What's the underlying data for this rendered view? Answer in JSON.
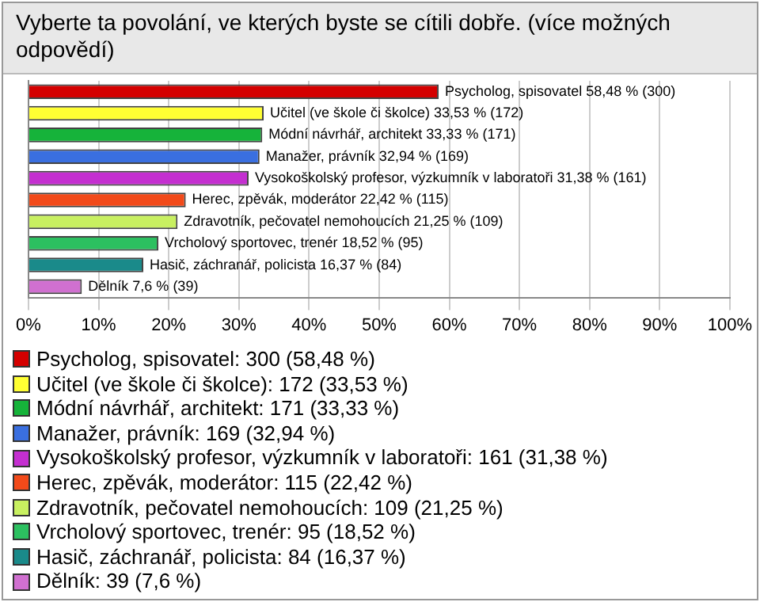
{
  "chart_data": {
    "type": "bar",
    "orientation": "horizontal",
    "title": "Vyberte ta povolání, ve kterých byste se cítili dobře. (více možných odpovědí)",
    "categories": [
      "Psycholog, spisovatel",
      "Učitel (ve škole či školce)",
      "Módní návrhář, architekt",
      "Manažer, právník",
      "Vysokoškolský profesor, výzkumník v laboratoři",
      "Herec, zpěvák, moderátor",
      "Zdravotník, pečovatel nemohoucích",
      "Vrcholový sportovec, trenér",
      "Hasič, záchranář, policista",
      "Dělník"
    ],
    "values": [
      58.48,
      33.53,
      33.33,
      32.94,
      31.38,
      22.42,
      21.25,
      18.52,
      16.37,
      7.6
    ],
    "value_labels": [
      "58,48 % (300)",
      "33,53 % (172)",
      "33,33 % (171)",
      "32,94 % (169)",
      "31,38 % (161)",
      "22,42 % (115)",
      "21,25 % (109)",
      "18,52 % (95)",
      "16,37 % (84)",
      "7,6 % (39)"
    ],
    "colors": [
      "#d40000",
      "#ffff33",
      "#16b33a",
      "#3a6fe0",
      "#c42fd0",
      "#f24a1a",
      "#c8f060",
      "#2cc060",
      "#1a8a8a",
      "#d070d0"
    ],
    "xlim": [
      0,
      100
    ],
    "xticks": [
      {
        "value": 0,
        "label": "0%"
      },
      {
        "value": 10,
        "label": "10%"
      },
      {
        "value": 20,
        "label": "20%"
      },
      {
        "value": 30,
        "label": "30%"
      },
      {
        "value": 40,
        "label": "40%"
      },
      {
        "value": 50,
        "label": "50%"
      },
      {
        "value": 60,
        "label": "60%"
      },
      {
        "value": 70,
        "label": "70%"
      },
      {
        "value": 80,
        "label": "80%"
      },
      {
        "value": 90,
        "label": "90%"
      },
      {
        "value": 100,
        "label": "100%"
      }
    ],
    "grid": "x",
    "annotations": [
      "Psycholog, spisovatel: 300 (58,48 %)",
      "Učitel (ve škole či školce): 172 (33,53 %)",
      "Módní návrhář, architekt: 171 (33,33 %)",
      "Manažer, právník: 169 (32,94 %)",
      "Vysokoškolský profesor, výzkumník v laboratoři: 161 (31,38 %)",
      "Herec, zpěvák, moderátor: 115 (22,42 %)",
      "Zdravotník, pečovatel nemohoucích: 109 (21,25 %)",
      "Vrcholový sportovec, trenér: 95 (18,52 %)",
      "Hasič, záchranář, policista: 84 (16,37 %)",
      "Dělník: 39 (7,6 %)"
    ]
  }
}
